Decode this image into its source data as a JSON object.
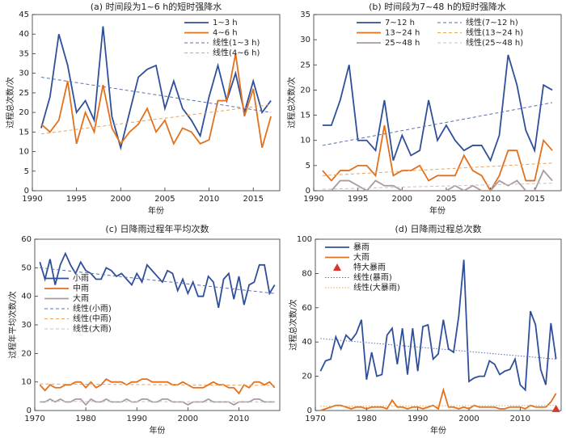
{
  "chart_data": [
    {
      "type": "line",
      "title": "(a) 时间段为1~6 h的短时强降水",
      "xlabel": "年份",
      "ylabel": "过程总次数/次",
      "x": [
        1991,
        1992,
        1993,
        1994,
        1995,
        1996,
        1997,
        1998,
        1999,
        2000,
        2001,
        2002,
        2003,
        2004,
        2005,
        2006,
        2007,
        2008,
        2009,
        2010,
        2011,
        2012,
        2013,
        2014,
        2015,
        2016,
        2017
      ],
      "xlim": [
        1990,
        2018
      ],
      "xticks": [
        1990,
        1995,
        2000,
        2005,
        2010,
        2015
      ],
      "ylim": [
        0,
        45
      ],
      "yticks": [
        0,
        5,
        10,
        15,
        20,
        25,
        30,
        35,
        40,
        45
      ],
      "legend": "upper right",
      "legend_columns": 1,
      "series": [
        {
          "name": "1~3 h",
          "color": "#2f4f9a",
          "style": "solid",
          "values": [
            16,
            24,
            40,
            32,
            20,
            23,
            18,
            42,
            19,
            11,
            20,
            29,
            31,
            32,
            21,
            28,
            21,
            18,
            14,
            24,
            32,
            23,
            30,
            20,
            28,
            20,
            23
          ]
        },
        {
          "name": "4~6 h",
          "color": "#e2711d",
          "style": "solid",
          "values": [
            17,
            15,
            18,
            28,
            12,
            20,
            15,
            27,
            16,
            12,
            15,
            17,
            21,
            15,
            18,
            12,
            16,
            15,
            12,
            13,
            23,
            23,
            35,
            19,
            26,
            11,
            19
          ]
        },
        {
          "name": "线性(1~3 h)",
          "color": "#5a6fae",
          "style": "dashed",
          "x": [
            1991,
            2017
          ],
          "values": [
            29,
            20
          ]
        },
        {
          "name": "线性(4~6 h)",
          "color": "#e8a25a",
          "style": "dashed",
          "x": [
            1991,
            2017
          ],
          "values": [
            14.5,
            22
          ]
        }
      ]
    },
    {
      "type": "line",
      "title": "(b) 时间段为7~48 h的短时强降水",
      "xlabel": "年份",
      "ylabel": "过程总次数/次",
      "x": [
        1991,
        1992,
        1993,
        1994,
        1995,
        1996,
        1997,
        1998,
        1999,
        2000,
        2001,
        2002,
        2003,
        2004,
        2005,
        2006,
        2007,
        2008,
        2009,
        2010,
        2011,
        2012,
        2013,
        2014,
        2015,
        2016,
        2017
      ],
      "xlim": [
        1990,
        2018
      ],
      "xticks": [
        1990,
        1995,
        2000,
        2005,
        2010,
        2015
      ],
      "ylim": [
        0,
        35
      ],
      "yticks": [
        0,
        5,
        10,
        15,
        20,
        25,
        30,
        35
      ],
      "legend": "upper center",
      "legend_columns": 2,
      "series": [
        {
          "name": "7~12 h",
          "color": "#2f4f9a",
          "style": "solid",
          "values": [
            13,
            13,
            18,
            25,
            10,
            10,
            8,
            18,
            6,
            11,
            7,
            8,
            18,
            10,
            13,
            10,
            8,
            9,
            9,
            6,
            11,
            27,
            21,
            12,
            8,
            21,
            20
          ]
        },
        {
          "name": "线性(7~12 h)",
          "color": "#5a6fae",
          "style": "dashed",
          "x": [
            1991,
            2017
          ],
          "values": [
            9,
            17.5
          ]
        },
        {
          "name": "13~24 h",
          "color": "#e2711d",
          "style": "solid",
          "values": [
            4,
            2,
            4,
            4,
            5,
            5,
            3,
            13,
            3,
            4,
            4,
            5,
            2,
            3,
            3,
            3,
            7,
            4,
            3,
            0,
            3,
            8,
            8,
            2,
            2,
            10,
            8
          ]
        },
        {
          "name": "线性(13~24 h)",
          "color": "#e8a25a",
          "style": "dashed",
          "x": [
            1991,
            2017
          ],
          "values": [
            3,
            5.5
          ]
        },
        {
          "name": "25~48 h",
          "color": "#a89a9e",
          "style": "solid",
          "values": [
            0,
            0,
            2,
            2,
            1,
            0,
            2,
            1,
            1,
            0,
            0,
            0,
            0,
            0,
            0,
            1,
            0,
            1,
            0,
            0,
            2,
            1,
            2,
            0,
            0,
            4,
            2
          ]
        },
        {
          "name": "线性(25~48 h)",
          "color": "#c9bfc2",
          "style": "dashed",
          "x": [
            1991,
            2017
          ],
          "values": [
            0.3,
            1.5
          ]
        }
      ]
    },
    {
      "type": "line",
      "title": "(c) 日降雨过程年平均次数",
      "xlabel": "年份",
      "ylabel": "过程年平均次数/次",
      "x": [
        1971,
        1972,
        1973,
        1974,
        1975,
        1976,
        1977,
        1978,
        1979,
        1980,
        1981,
        1982,
        1983,
        1984,
        1985,
        1986,
        1987,
        1988,
        1989,
        1990,
        1991,
        1992,
        1993,
        1994,
        1995,
        1996,
        1997,
        1998,
        1999,
        2000,
        2001,
        2002,
        2003,
        2004,
        2005,
        2006,
        2007,
        2008,
        2009,
        2010,
        2011,
        2012,
        2013,
        2014,
        2015,
        2016,
        2017
      ],
      "xlim": [
        1970,
        2018
      ],
      "xticks": [
        1970,
        1980,
        1990,
        2000,
        2010
      ],
      "ylim": [
        0,
        60
      ],
      "yticks": [
        0,
        10,
        20,
        30,
        40,
        50,
        60
      ],
      "legend": "center left",
      "legend_columns": 1,
      "series": [
        {
          "name": "小雨",
          "color": "#2f4f9a",
          "style": "solid",
          "values": [
            52,
            46,
            53,
            44,
            51,
            55,
            51,
            48,
            52,
            49,
            48,
            46,
            46,
            50,
            49,
            47,
            48,
            46,
            44,
            48,
            45,
            51,
            49,
            47,
            45,
            49,
            48,
            42,
            46,
            41,
            45,
            40,
            40,
            47,
            45,
            36,
            46,
            48,
            39,
            47,
            37,
            44,
            45,
            51,
            51,
            41,
            44
          ]
        },
        {
          "name": "中雨",
          "color": "#e2711d",
          "style": "solid",
          "values": [
            9,
            7,
            9,
            8,
            8,
            9,
            9,
            10,
            10,
            8,
            10,
            8,
            9,
            11,
            10,
            10,
            10,
            9,
            10,
            10,
            11,
            11,
            10,
            10,
            10,
            10,
            9,
            9,
            10,
            9,
            8,
            8,
            8,
            9,
            10,
            9,
            9,
            8,
            8,
            6,
            9,
            8,
            10,
            10,
            9,
            10,
            8
          ]
        },
        {
          "name": "大雨",
          "color": "#a89a9e",
          "style": "solid",
          "values": [
            3,
            3,
            4,
            3,
            4,
            3,
            3,
            4,
            4,
            2,
            4,
            3,
            3,
            4,
            3,
            3,
            3,
            4,
            3,
            3,
            4,
            4,
            3,
            3,
            4,
            4,
            3,
            3,
            3,
            2,
            3,
            3,
            3,
            4,
            3,
            3,
            3,
            3,
            2,
            3,
            3,
            3,
            4,
            4,
            3,
            3,
            3
          ]
        },
        {
          "name": "线性(小雨)",
          "color": "#5a6fae",
          "style": "dashed",
          "x": [
            1971,
            2017
          ],
          "values": [
            50,
            41
          ]
        },
        {
          "name": "线性(中雨)",
          "color": "#e8a25a",
          "style": "dashed",
          "x": [
            1971,
            2017
          ],
          "values": [
            9.3,
            8.8
          ]
        },
        {
          "name": "线性(大雨)",
          "color": "#c9bfc2",
          "style": "dashed",
          "x": [
            1971,
            2017
          ],
          "values": [
            3.2,
            3
          ]
        }
      ]
    },
    {
      "type": "line",
      "title": "(d) 日降雨过程总次数",
      "xlabel": "年份",
      "ylabel": "过程总次数/次",
      "x": [
        1971,
        1972,
        1973,
        1974,
        1975,
        1976,
        1977,
        1978,
        1979,
        1980,
        1981,
        1982,
        1983,
        1984,
        1985,
        1986,
        1987,
        1988,
        1989,
        1990,
        1991,
        1992,
        1993,
        1994,
        1995,
        1996,
        1997,
        1998,
        1999,
        2000,
        2001,
        2002,
        2003,
        2004,
        2005,
        2006,
        2007,
        2008,
        2009,
        2010,
        2011,
        2012,
        2013,
        2014,
        2015,
        2016,
        2017
      ],
      "xlim": [
        1970,
        2018
      ],
      "xticks": [
        1970,
        1980,
        1990,
        2000,
        2010
      ],
      "ylim": [
        0,
        100
      ],
      "yticks": [
        0,
        20,
        40,
        60,
        80,
        100
      ],
      "legend": "upper left",
      "legend_columns": 1,
      "series": [
        {
          "name": "暴雨",
          "color": "#2f4f9a",
          "style": "solid",
          "values": [
            23,
            29,
            30,
            43,
            36,
            44,
            41,
            45,
            53,
            18,
            34,
            20,
            21,
            44,
            48,
            27,
            48,
            21,
            48,
            23,
            49,
            50,
            30,
            33,
            53,
            36,
            34,
            55,
            88,
            17,
            19,
            20,
            20,
            29,
            27,
            21,
            23,
            24,
            30,
            15,
            12,
            58,
            50,
            24,
            15,
            51,
            30
          ]
        },
        {
          "name": "大雨",
          "color": "#e2711d",
          "style": "solid",
          "values": [
            0,
            1,
            2,
            3,
            3,
            2,
            1,
            2,
            2,
            1,
            2,
            2,
            2,
            1,
            6,
            2,
            2,
            1,
            2,
            2,
            1,
            2,
            3,
            1,
            12,
            2,
            2,
            1,
            2,
            1,
            3,
            2,
            2,
            2,
            2,
            1,
            1,
            2,
            2,
            2,
            1,
            3,
            2,
            2,
            2,
            5,
            10
          ]
        },
        {
          "name": "特大暴雨",
          "color": "#d9362b",
          "style": "marker",
          "x": [
            2017
          ],
          "values": [
            1
          ]
        },
        {
          "name": "线性(暴雨)",
          "color": "#5a6fae",
          "style": "dotted",
          "x": [
            1971,
            2017
          ],
          "values": [
            42,
            30
          ]
        },
        {
          "name": "线性(大暴雨)",
          "color": "#e8a25a",
          "style": "dotted",
          "x": [
            1971,
            2017
          ],
          "values": [
            2.5,
            3
          ]
        }
      ]
    }
  ]
}
